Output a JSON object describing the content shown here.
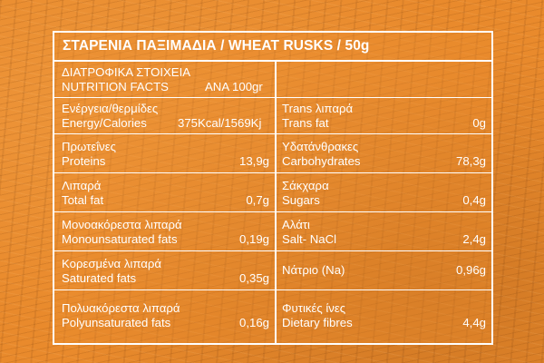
{
  "title": "ΣΤΑΡΕΝΙΑ ΠΑΞΙΜΑΔΙΑ / WHEAT RUSKS / 50g",
  "facts_header": {
    "greek": "ΔΙΑΤΡΟΦΙΚΑ ΣΤΟΙΧΕΙΑ",
    "english": "NUTRITION FACTS",
    "per": "ΑΝΑ 100gr"
  },
  "left": [
    {
      "greek": "Ενέργεια/θερμίδες",
      "english": "Energy/Calories",
      "value": "375Kcal/1569Kj"
    },
    {
      "greek": "Πρωτεΐνες",
      "english": "Proteins",
      "value": "13,9g"
    },
    {
      "greek": "Λιπαρά",
      "english": "Total fat",
      "value": "0,7g"
    },
    {
      "greek": "Μονοακόρεστα λιπαρά",
      "english": "Monounsaturated fats",
      "value": "0,19g"
    },
    {
      "greek": "Κορεσμένα λιπαρά",
      "english": "Saturated fats",
      "value": "0,35g"
    },
    {
      "greek": "Πολυακόρεστα λιπαρά",
      "english": "Polyunsaturated fats",
      "value": "0,16g"
    }
  ],
  "right": [
    {
      "greek": "Trans λιπαρά",
      "english": "Trans fat",
      "value": "0g"
    },
    {
      "greek": "Υδατάνθρακες",
      "english": "Carbohydrates",
      "value": "78,3g"
    },
    {
      "greek": "Σάκχαρα",
      "english": "Sugars",
      "value": "0,4g"
    },
    {
      "greek": "Αλάτι",
      "english": "Salt- NaCl",
      "value": "2,4g"
    },
    {
      "greek": "",
      "english": "Νάτριο (Na)",
      "value": "0,96g"
    },
    {
      "greek": "Φυτικές ίνες",
      "english": "Dietary fibres",
      "value": "4,4g"
    }
  ],
  "colors": {
    "background": "#e98a2c",
    "text": "#ffffff",
    "border": "#ffffff"
  }
}
